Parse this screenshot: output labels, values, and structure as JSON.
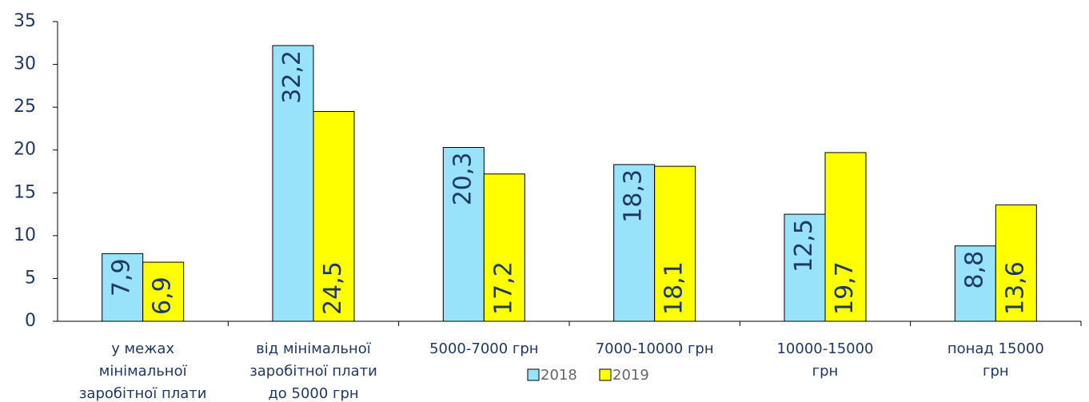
{
  "chart_data": {
    "type": "bar",
    "categories": [
      "у межах\nмінімальної\nзаробітної плати",
      "від мінімальної\nзаробітної плати\nдо 5000 грн",
      "5000-7000 грн",
      "7000-10000 грн",
      "10000-15000\nгрн",
      "понад 15000\nгрн"
    ],
    "series": [
      {
        "name": "2018",
        "color": "#99e3fa",
        "values": [
          7.9,
          32.2,
          20.3,
          18.3,
          12.5,
          8.8
        ],
        "value_labels": [
          "7,9",
          "32,2",
          "20,3",
          "18,3",
          "12,5",
          "8,8"
        ]
      },
      {
        "name": "2019",
        "color": "#ffff00",
        "values": [
          6.9,
          24.5,
          17.2,
          18.1,
          19.7,
          13.6
        ],
        "value_labels": [
          "6,9",
          "24,5",
          "17,2",
          "18,1",
          "19,7",
          "13,6"
        ]
      }
    ],
    "ylim": [
      0,
      35
    ],
    "yticks": [
      0,
      5,
      10,
      15,
      20,
      25,
      30,
      35
    ],
    "grid": false,
    "legend": "bottom"
  }
}
